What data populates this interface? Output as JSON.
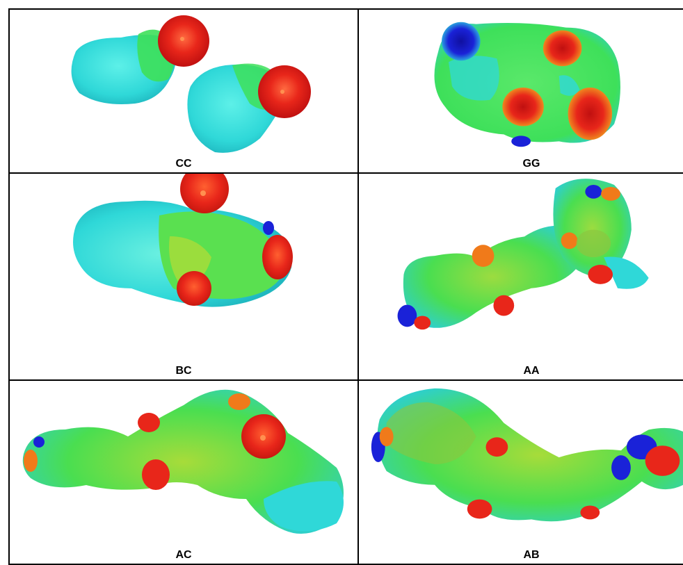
{
  "cells": [
    {
      "label": "CC"
    },
    {
      "label": "GG"
    },
    {
      "label": "BC"
    },
    {
      "label": "AA"
    },
    {
      "label": "AC"
    },
    {
      "label": "AB"
    }
  ],
  "colors": {
    "cyan": "#2fd8d8",
    "green": "#3ee05a",
    "yellow_green": "#a7dc3a",
    "red": "#e8261a",
    "orange": "#f07a1a",
    "blue": "#1a22d8"
  }
}
